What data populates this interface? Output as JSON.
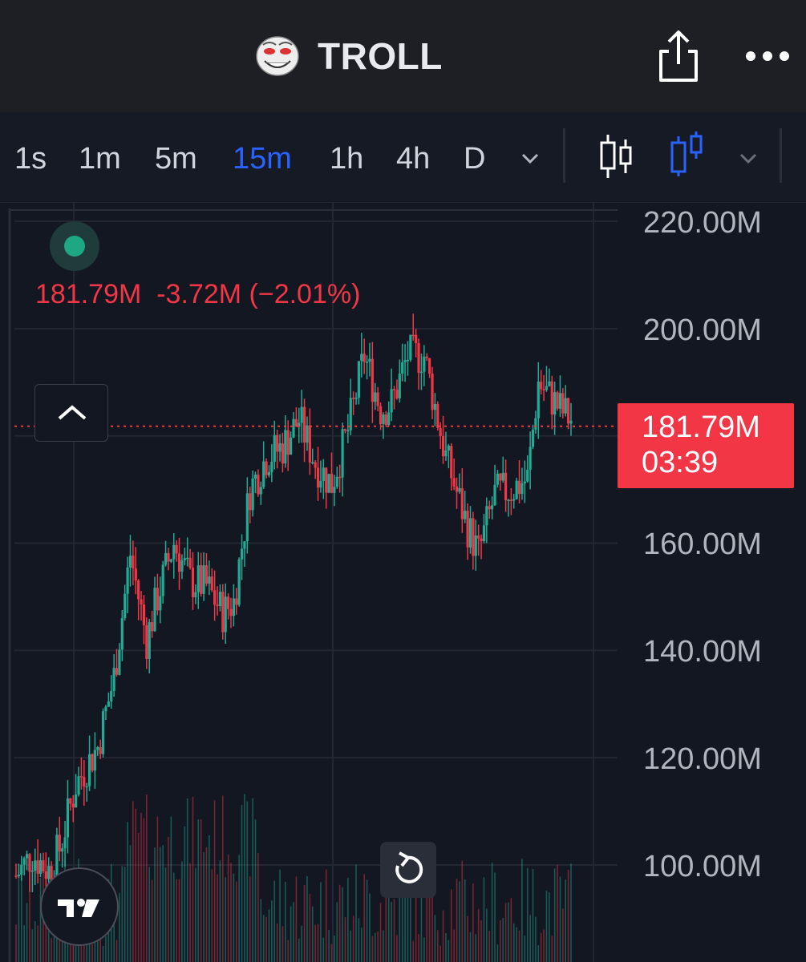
{
  "header": {
    "title": "TROLL",
    "logo_icon": "troll-face-icon",
    "share_icon": "share-icon",
    "more_icon": "more-dots-icon"
  },
  "toolbar": {
    "timeframes": [
      "1s",
      "1m",
      "5m",
      "15m",
      "1h",
      "4h",
      "D"
    ],
    "active_timeframe": "15m",
    "chart_types": [
      "candlestick-icon",
      "hollow-candle-icon"
    ],
    "active_chart_type": "hollow-candle-icon"
  },
  "legend": {
    "last": "181.79M",
    "change": "-3.72M",
    "change_pct": "(−2.01%)"
  },
  "price_label": {
    "price": "181.79M",
    "countdown": "03:39"
  },
  "colors": {
    "up": "#22ab94",
    "down": "#f23645",
    "accent": "#2962ff",
    "background": "#131722"
  },
  "chart_data": {
    "type": "candlestick",
    "symbol": "TROLL",
    "interval": "15m",
    "y_axis_ticks": [
      "220.00M",
      "200.00M",
      "160.00M",
      "140.00M",
      "120.00M",
      "100.00M"
    ],
    "ylim": [
      92,
      222
    ],
    "last_price": 181.79,
    "close_path": [
      [
        0,
        98
      ],
      [
        6,
        102
      ],
      [
        12,
        99
      ],
      [
        16,
        103
      ],
      [
        22,
        115
      ],
      [
        30,
        122
      ],
      [
        36,
        135
      ],
      [
        42,
        158
      ],
      [
        48,
        142
      ],
      [
        52,
        150
      ],
      [
        58,
        160
      ],
      [
        64,
        153
      ],
      [
        70,
        152
      ],
      [
        76,
        147
      ],
      [
        80,
        149
      ],
      [
        86,
        170
      ],
      [
        92,
        176
      ],
      [
        98,
        178
      ],
      [
        104,
        183
      ],
      [
        110,
        175
      ],
      [
        116,
        171
      ],
      [
        122,
        181
      ],
      [
        128,
        195
      ],
      [
        134,
        185
      ],
      [
        138,
        186
      ],
      [
        144,
        195
      ],
      [
        150,
        195
      ],
      [
        158,
        176
      ],
      [
        166,
        163
      ],
      [
        170,
        158
      ],
      [
        176,
        169
      ],
      [
        182,
        170
      ],
      [
        188,
        172
      ],
      [
        192,
        190
      ],
      [
        200,
        185
      ],
      [
        204,
        183
      ]
    ]
  }
}
